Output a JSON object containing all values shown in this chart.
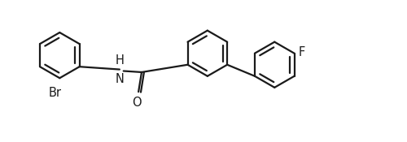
{
  "bg_color": "#ffffff",
  "line_color": "#1a1a1a",
  "line_width": 1.6,
  "label_Br": "Br",
  "label_O": "O",
  "label_H": "H",
  "label_N": "N",
  "label_F": "F",
  "font_size_labels": 10.5,
  "fig_width": 5.0,
  "fig_height": 1.75,
  "dpi": 100
}
